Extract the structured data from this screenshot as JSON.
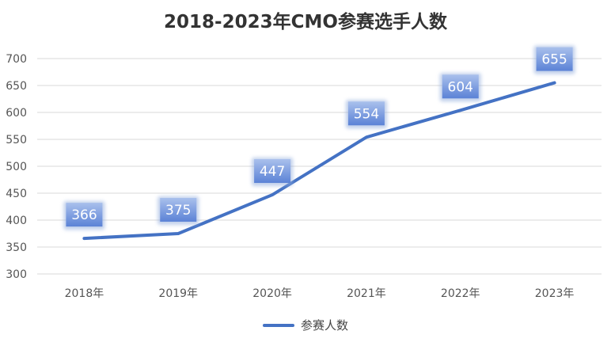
{
  "chart_data": {
    "type": "line",
    "title": "2018-2023年CMO参赛选手人数",
    "categories": [
      "2018年",
      "2019年",
      "2020年",
      "2021年",
      "2022年",
      "2023年"
    ],
    "series": [
      {
        "name": "参赛人数",
        "values": [
          366,
          375,
          447,
          554,
          604,
          655
        ],
        "color": "#4472C4"
      }
    ],
    "yticks": [
      300,
      350,
      400,
      450,
      500,
      550,
      600,
      650,
      700
    ],
    "ylim": [
      300,
      700
    ],
    "grid": true,
    "legend_position": "bottom",
    "data_labels": true
  }
}
